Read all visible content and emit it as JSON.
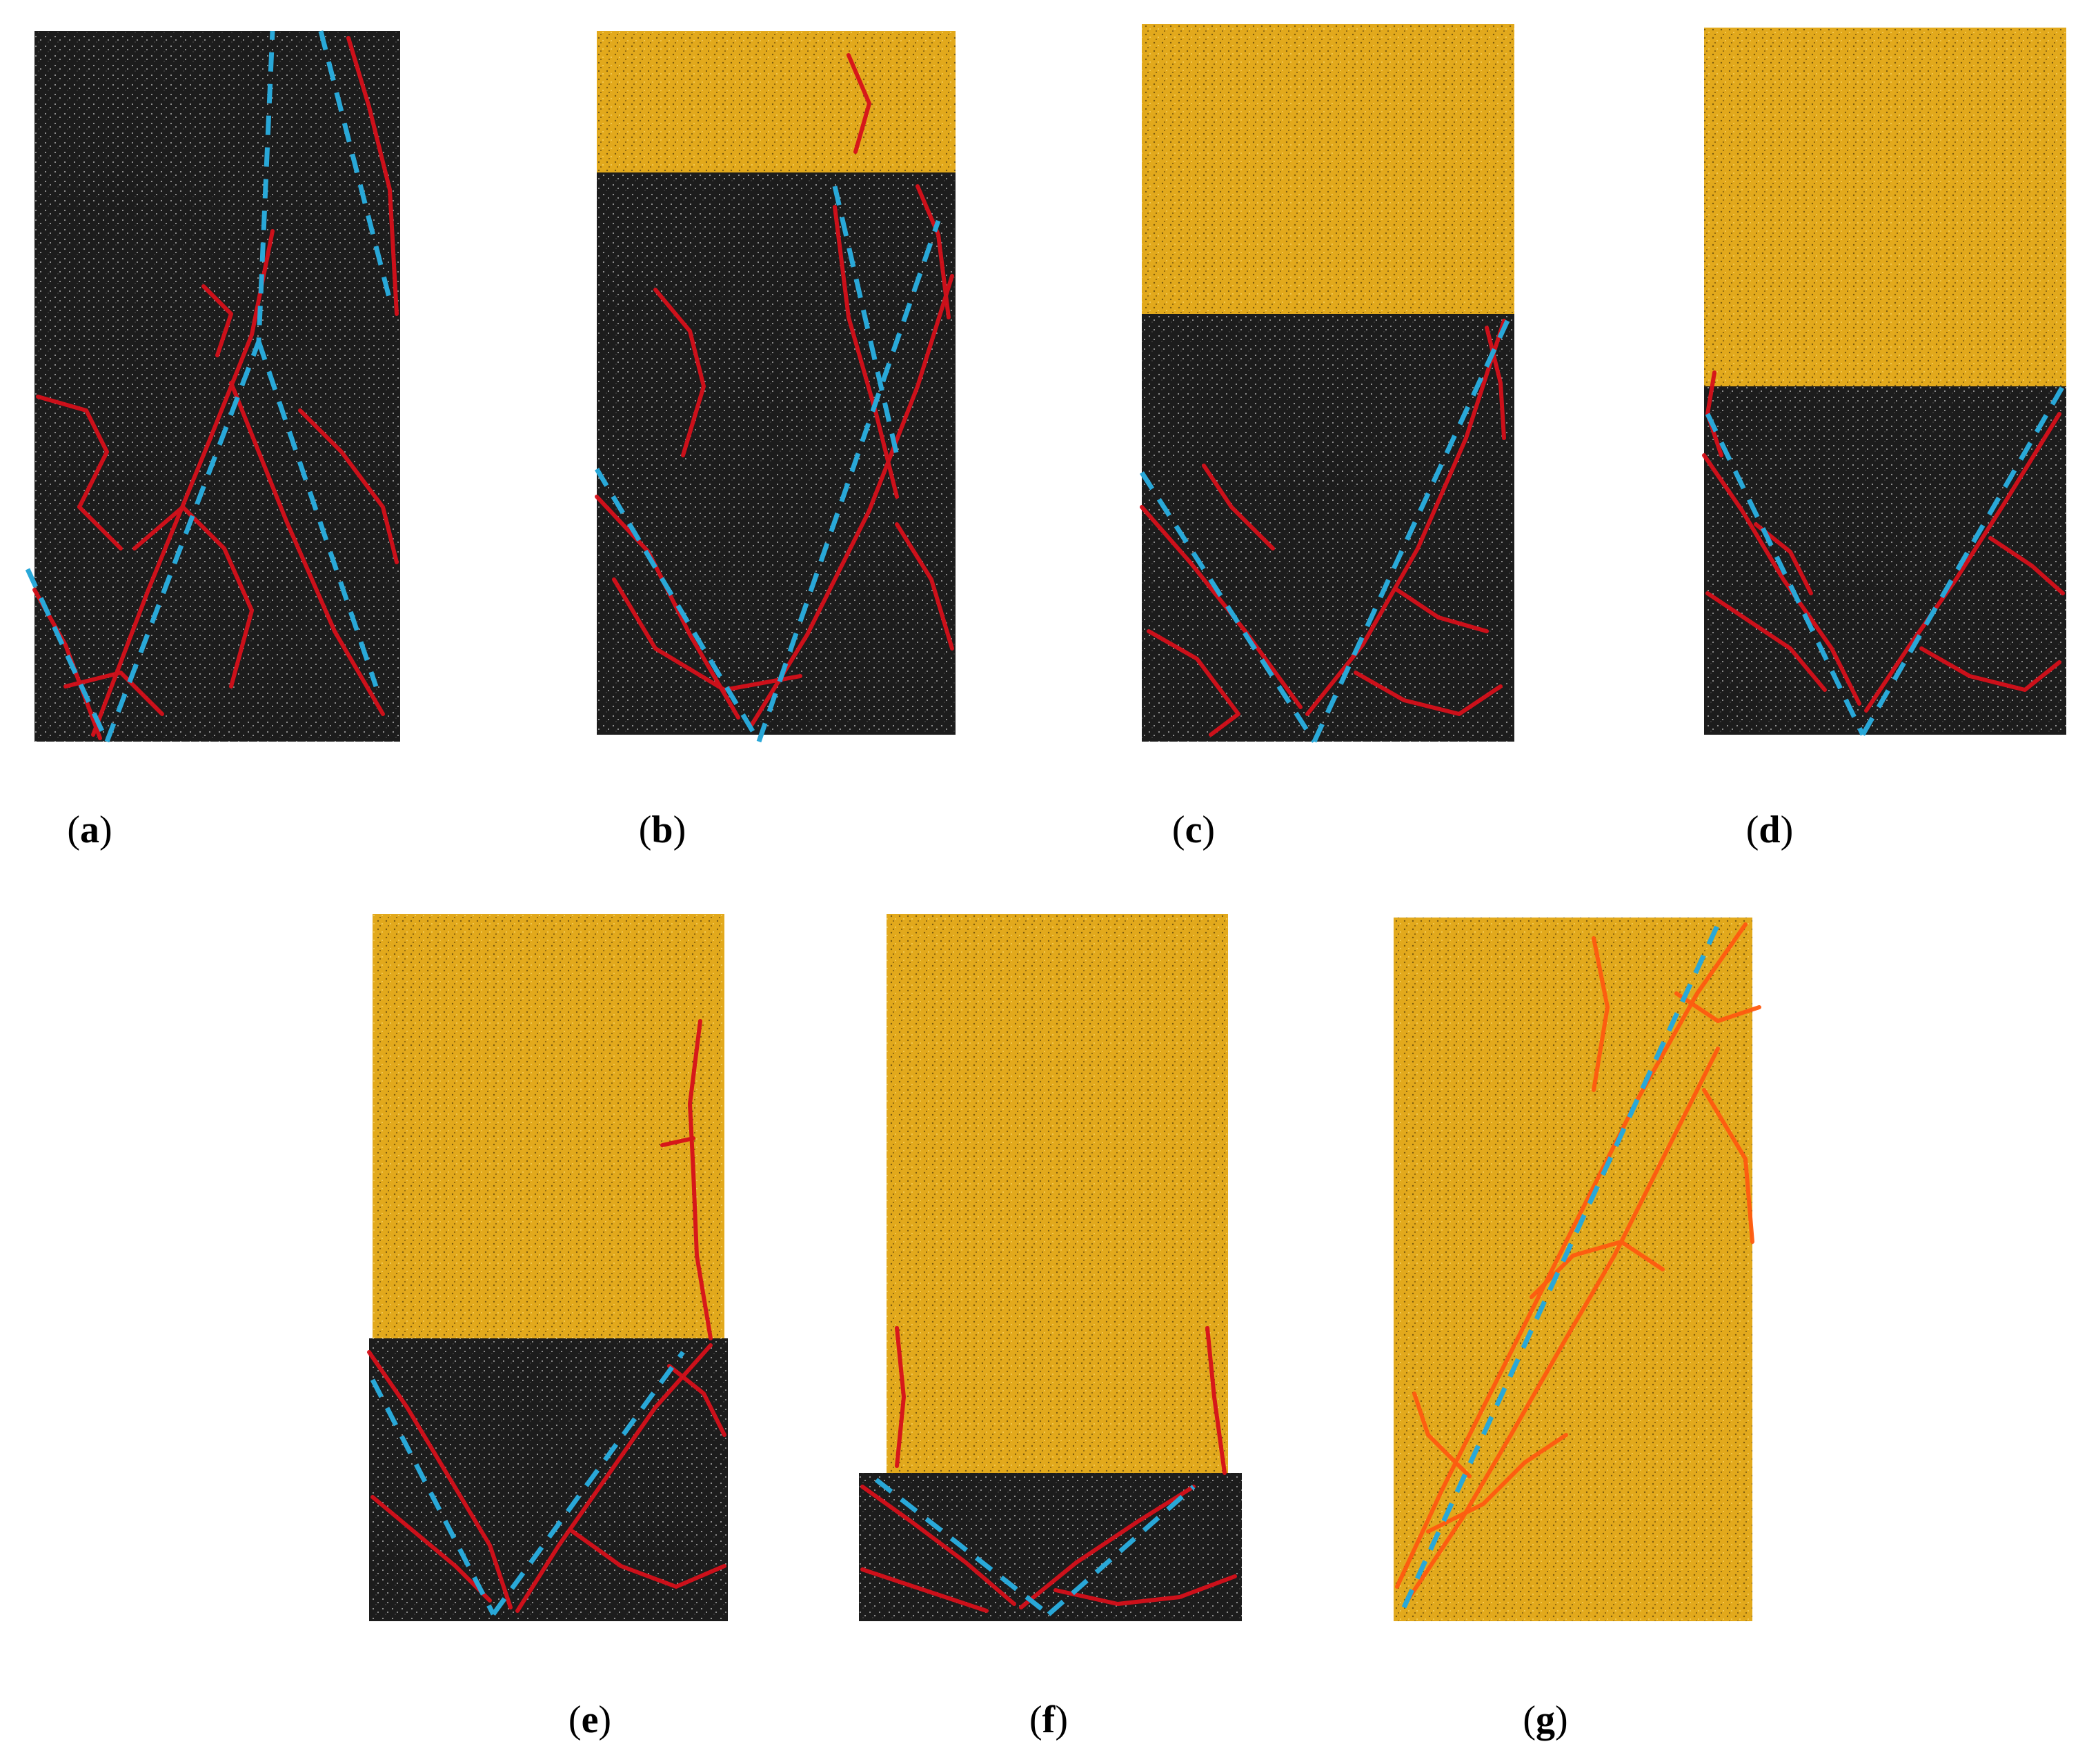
{
  "figure": {
    "colors": {
      "background": "#ffffff",
      "rock_dark": "#1c1c1c",
      "rock_light": "#e2a91c",
      "crack": "#d6101a",
      "crack_light_rock": "#ff5a10",
      "fracture_line": "#29a8d8"
    },
    "panels": [
      {
        "id": "a",
        "open": "(",
        "letter": "a",
        "close": ")"
      },
      {
        "id": "b",
        "open": "(",
        "letter": "b",
        "close": ")"
      },
      {
        "id": "c",
        "open": "(",
        "letter": "c",
        "close": ")"
      },
      {
        "id": "d",
        "open": "(",
        "letter": "d",
        "close": ")"
      },
      {
        "id": "e",
        "open": "(",
        "letter": "e",
        "close": ")"
      },
      {
        "id": "f",
        "open": "(",
        "letter": "f",
        "close": ")"
      },
      {
        "id": "g",
        "open": "(",
        "letter": "g",
        "close": ")"
      }
    ]
  }
}
